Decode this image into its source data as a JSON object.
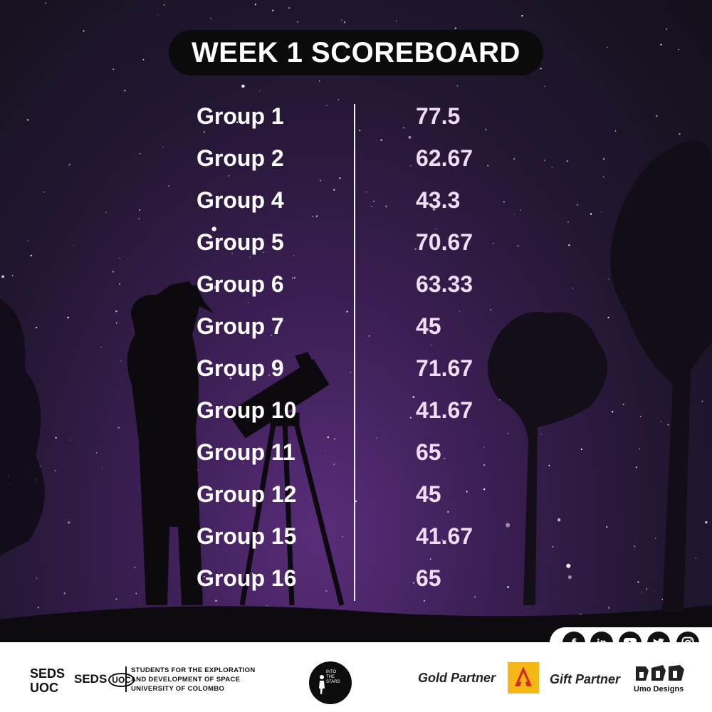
{
  "title": "WEEK 1 SCOREBOARD",
  "scores": [
    {
      "group": "Group 1",
      "score": "77.5"
    },
    {
      "group": "Group 2",
      "score": "62.67"
    },
    {
      "group": "Group 4",
      "score": "43.3"
    },
    {
      "group": "Group 5",
      "score": "70.67"
    },
    {
      "group": "Group 6",
      "score": "63.33"
    },
    {
      "group": "Group 7",
      "score": "45"
    },
    {
      "group": "Group 9",
      "score": "71.67"
    },
    {
      "group": "Group 10",
      "score": "41.67"
    },
    {
      "group": "Group 11",
      "score": "65"
    },
    {
      "group": "Group 12",
      "score": "45"
    },
    {
      "group": "Group 15",
      "score": "41.67"
    },
    {
      "group": "Group 16",
      "score": "65"
    }
  ],
  "social": {
    "icons": [
      "facebook-icon",
      "linkedin-icon",
      "youtube-icon",
      "twitter-icon",
      "instagram-icon"
    ],
    "facebook": "f",
    "linkedin": "in"
  },
  "footer": {
    "seds_short_line1": "SEDS",
    "seds_short_line2": "UOC",
    "seds_logo_text": "SEDS",
    "seds_logo_badge": "UOC",
    "seds_desc_line1": "STUDENTS FOR THE EXPLORATION",
    "seds_desc_line2": "AND DEVELOPMENT OF SPACE",
    "seds_desc_line3": "UNIVERSITY OF COLOMBO",
    "its_line1": "INTO",
    "its_line2": "THE",
    "its_line3": "STARS",
    "gold_partner_label": "Gold Partner",
    "gift_partner_label": "Gift Partner",
    "gift_partner_name": "Umo Designs"
  },
  "colors": {
    "background": "#2a1a3d",
    "title_pill": "#0b0b0c",
    "score_text": "#f1dcf3",
    "gold_logo": "#f4b716"
  }
}
